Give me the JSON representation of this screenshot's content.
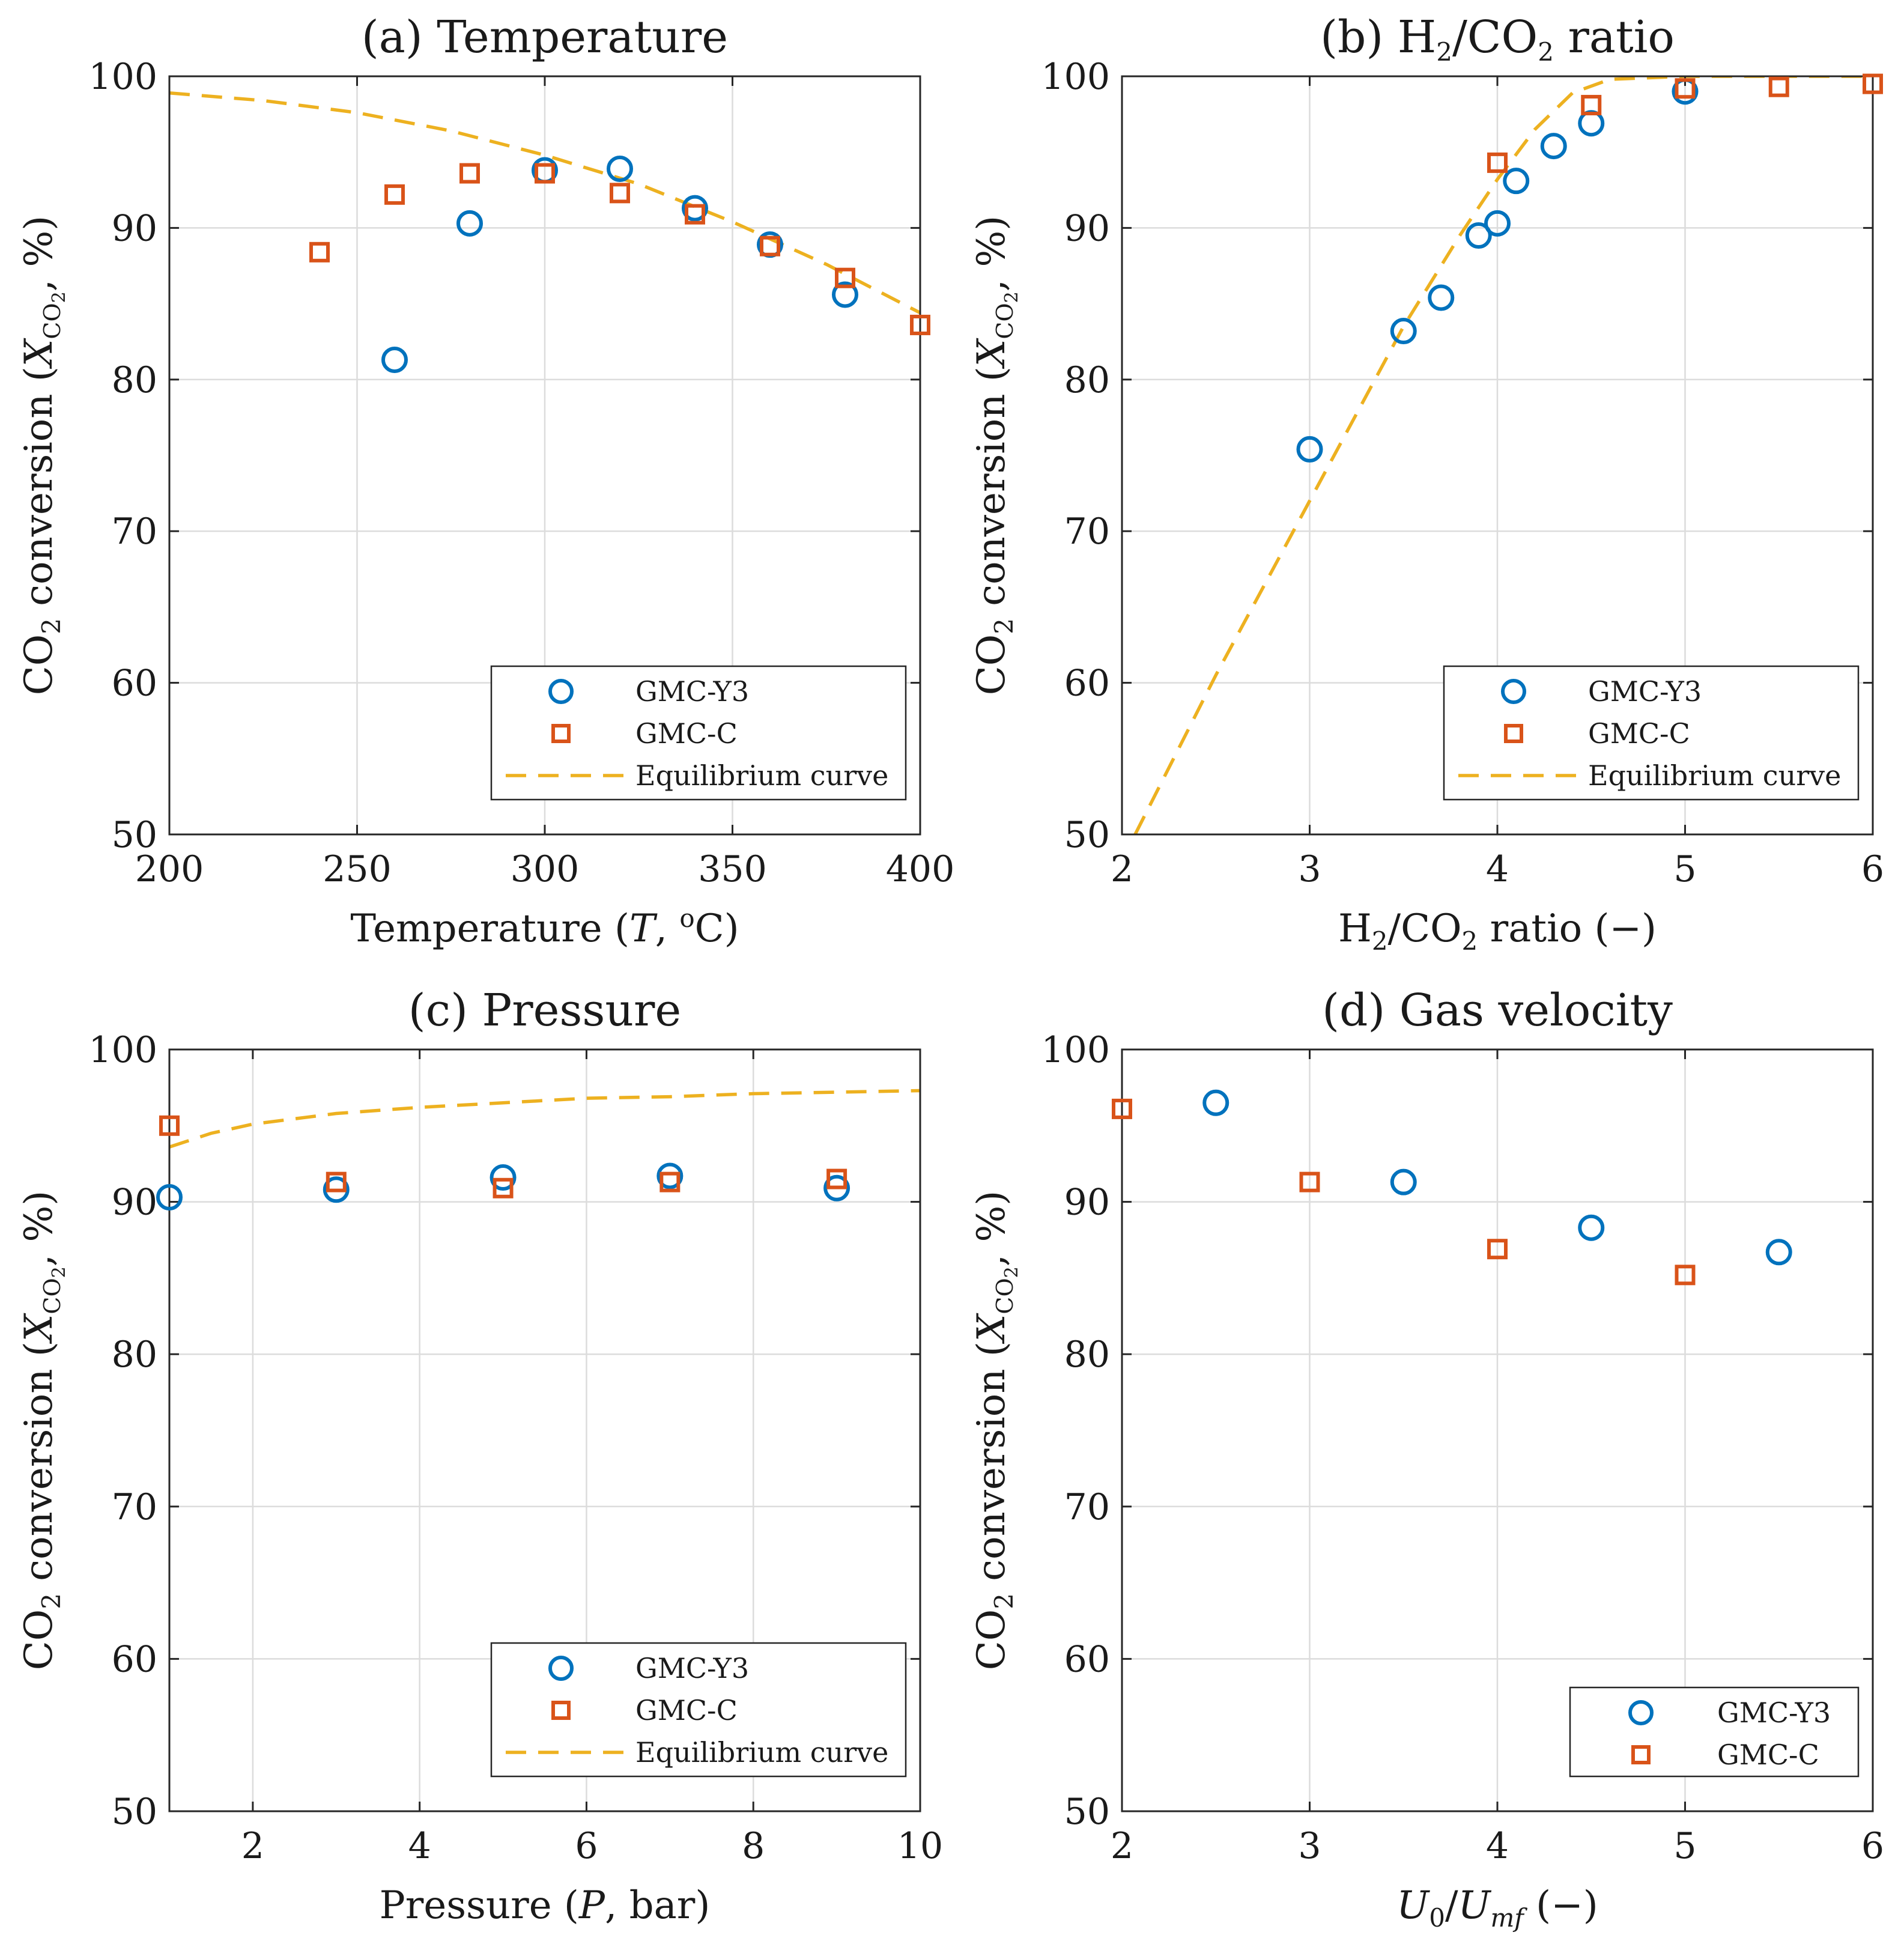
{
  "colors": {
    "gmc_y3": "#0072BD",
    "gmc_c": "#D95319",
    "equilibrium": "#EDB120",
    "grid": "#dcdcdc",
    "axis": "#262626"
  },
  "common": {
    "ylabel_main": "CO",
    "ylabel_sub": "2",
    "ylabel_mid": " conversion (",
    "ylabel_X": "X",
    "ylabel_Xsub": "CO",
    "ylabel_Xsub2": "2",
    "ylabel_tail": ", %)",
    "legend_y3": "GMC-Y3",
    "legend_c": "GMC-C",
    "legend_eq": "Equilibrium curve"
  },
  "chart_data": [
    {
      "id": "a",
      "type": "scatter",
      "title": "(a) Temperature",
      "xlabel": "Temperature (T, °C)",
      "xlabel_parts": [
        "Temperature (",
        "T",
        ", ",
        "o",
        "C)"
      ],
      "ylabel": "CO2 conversion (X_CO2, %)",
      "xlim": [
        200,
        400
      ],
      "ylim": [
        50,
        100
      ],
      "xticks": [
        200,
        250,
        300,
        350,
        400
      ],
      "yticks": [
        50,
        60,
        70,
        80,
        90,
        100
      ],
      "grid": true,
      "legend": "bottom-right",
      "series": [
        {
          "name": "GMC-Y3",
          "marker": "circle",
          "x": [
            260,
            280,
            300,
            320,
            340,
            360,
            380
          ],
          "y": [
            81.3,
            90.3,
            93.8,
            93.9,
            91.3,
            88.9,
            85.6
          ]
        },
        {
          "name": "GMC-C",
          "marker": "square",
          "x": [
            240,
            260,
            280,
            300,
            320,
            340,
            360,
            380,
            400
          ],
          "y": [
            88.4,
            92.2,
            93.6,
            93.6,
            92.3,
            90.9,
            88.8,
            86.7,
            83.6
          ]
        },
        {
          "name": "Equilibrium curve",
          "marker": "dashed-line",
          "x": [
            200,
            225,
            250,
            275,
            300,
            325,
            350,
            375,
            400
          ],
          "y": [
            98.9,
            98.4,
            97.6,
            96.4,
            94.8,
            92.9,
            90.4,
            87.6,
            84.4
          ]
        }
      ]
    },
    {
      "id": "b",
      "type": "scatter",
      "title": "(b) H2/CO2 ratio",
      "title_parts": [
        "(b) H",
        "2",
        "/CO",
        "2",
        " ratio"
      ],
      "xlabel": "H2/CO2 ratio (−)",
      "xlabel_parts": [
        "H",
        "2",
        "/CO",
        "2",
        " ratio (−)"
      ],
      "ylabel": "CO2 conversion (X_CO2, %)",
      "xlim": [
        2,
        6
      ],
      "ylim": [
        50,
        100
      ],
      "xticks": [
        2,
        3,
        4,
        5,
        6
      ],
      "yticks": [
        50,
        60,
        70,
        80,
        90,
        100
      ],
      "grid": true,
      "legend": "bottom-right",
      "series": [
        {
          "name": "GMC-Y3",
          "marker": "circle",
          "x": [
            3.0,
            3.5,
            3.7,
            3.9,
            4.0,
            4.1,
            4.3,
            4.5,
            5.0
          ],
          "y": [
            75.4,
            83.2,
            85.4,
            89.5,
            90.3,
            93.1,
            95.4,
            96.9,
            99.0
          ]
        },
        {
          "name": "GMC-C",
          "marker": "square",
          "x": [
            4.0,
            4.5,
            5.0,
            5.5,
            6.0
          ],
          "y": [
            94.3,
            98.1,
            99.2,
            99.3,
            99.5
          ]
        },
        {
          "name": "Equilibrium curve",
          "marker": "dashed-line",
          "x": [
            2.07,
            2.5,
            3.0,
            3.5,
            3.8,
            4.0,
            4.2,
            4.4,
            4.6,
            5.0,
            6.0
          ],
          "y": [
            50.0,
            60.5,
            72.0,
            83.5,
            89.5,
            93.2,
            96.5,
            98.9,
            99.8,
            100.0,
            100.0
          ]
        }
      ]
    },
    {
      "id": "c",
      "type": "scatter",
      "title": "(c) Pressure",
      "xlabel": "Pressure (P, bar)",
      "xlabel_parts": [
        "Pressure (",
        "P",
        ", bar)"
      ],
      "ylabel": "CO2 conversion (X_CO2, %)",
      "xlim": [
        1,
        10
      ],
      "ylim": [
        50,
        100
      ],
      "xticks": [
        2,
        4,
        6,
        8,
        10
      ],
      "yticks": [
        50,
        60,
        70,
        80,
        90,
        100
      ],
      "grid": true,
      "legend": "bottom-right",
      "series": [
        {
          "name": "GMC-Y3",
          "marker": "circle",
          "x": [
            1,
            3,
            5,
            7,
            9
          ],
          "y": [
            90.3,
            90.8,
            91.6,
            91.7,
            90.9
          ]
        },
        {
          "name": "GMC-C",
          "marker": "square",
          "x": [
            1,
            3,
            5,
            7,
            9
          ],
          "y": [
            95.0,
            91.3,
            90.9,
            91.3,
            91.5
          ]
        },
        {
          "name": "Equilibrium curve",
          "marker": "dashed-line",
          "x": [
            1,
            1.5,
            2,
            3,
            4,
            5,
            6,
            7,
            8,
            9,
            10
          ],
          "y": [
            93.6,
            94.5,
            95.1,
            95.8,
            96.2,
            96.5,
            96.8,
            96.9,
            97.1,
            97.2,
            97.3
          ]
        }
      ]
    },
    {
      "id": "d",
      "type": "scatter",
      "title": "(d) Gas velocity",
      "xlabel": "U0/Umf (−)",
      "xlabel_parts": [
        "U",
        "0",
        "/",
        "U",
        "mf",
        " (−)"
      ],
      "ylabel": "CO2 conversion (X_CO2, %)",
      "xlim": [
        2,
        6
      ],
      "ylim": [
        50,
        100
      ],
      "xticks": [
        2,
        3,
        4,
        5,
        6
      ],
      "yticks": [
        50,
        60,
        70,
        80,
        90,
        100
      ],
      "grid": true,
      "legend": "bottom-right",
      "series": [
        {
          "name": "GMC-Y3",
          "marker": "circle",
          "x": [
            2.5,
            3.5,
            4.5,
            5.5
          ],
          "y": [
            96.5,
            91.3,
            88.3,
            86.7
          ]
        },
        {
          "name": "GMC-C",
          "marker": "square",
          "x": [
            2,
            3,
            4,
            5
          ],
          "y": [
            96.1,
            91.3,
            86.9,
            85.2
          ]
        }
      ]
    }
  ]
}
